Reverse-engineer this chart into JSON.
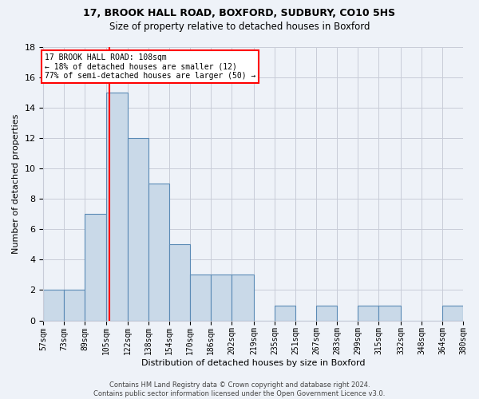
{
  "title1": "17, BROOK HALL ROAD, BOXFORD, SUDBURY, CO10 5HS",
  "title2": "Size of property relative to detached houses in Boxford",
  "xlabel": "Distribution of detached houses by size in Boxford",
  "ylabel": "Number of detached properties",
  "footnote": "Contains HM Land Registry data © Crown copyright and database right 2024.\nContains public sector information licensed under the Open Government Licence v3.0.",
  "bin_edges": [
    57,
    73,
    89,
    105,
    122,
    138,
    154,
    170,
    186,
    202,
    219,
    235,
    251,
    267,
    283,
    299,
    315,
    332,
    348,
    364,
    380
  ],
  "bin_labels": [
    "57sqm",
    "73sqm",
    "89sqm",
    "105sqm",
    "122sqm",
    "138sqm",
    "154sqm",
    "170sqm",
    "186sqm",
    "202sqm",
    "219sqm",
    "235sqm",
    "251sqm",
    "267sqm",
    "283sqm",
    "299sqm",
    "315sqm",
    "332sqm",
    "348sqm",
    "364sqm",
    "380sqm"
  ],
  "values": [
    2,
    2,
    7,
    15,
    12,
    9,
    5,
    3,
    3,
    3,
    0,
    1,
    0,
    1,
    0,
    1,
    1,
    0,
    0,
    1
  ],
  "bar_color": "#c9d9e8",
  "bar_edge_color": "#5a8ab5",
  "red_line_x": 108,
  "annotation_line1": "17 BROOK HALL ROAD: 108sqm",
  "annotation_line2": "← 18% of detached houses are smaller (12)",
  "annotation_line3": "77% of semi-detached houses are larger (50) →",
  "annotation_box_color": "white",
  "annotation_box_edge": "red",
  "background_color": "#eef2f8",
  "ylim": [
    0,
    18
  ],
  "yticks": [
    0,
    2,
    4,
    6,
    8,
    10,
    12,
    14,
    16,
    18
  ],
  "title1_fontsize": 9,
  "title2_fontsize": 8.5,
  "ylabel_fontsize": 8,
  "xlabel_fontsize": 8,
  "tick_fontsize": 7,
  "footnote_fontsize": 6
}
